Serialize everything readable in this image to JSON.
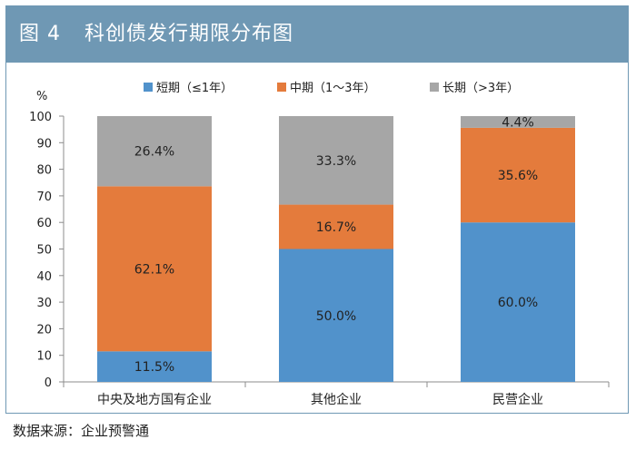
{
  "header": {
    "figure_no": "图 4",
    "title": "科创债发行期限分布图"
  },
  "source": "数据来源：企业预警通",
  "colors": {
    "short": "#5192cb",
    "mid": "#e47b3c",
    "long": "#a6a6a6",
    "header_bg": "#6f98b4"
  },
  "chart_data": {
    "type": "bar",
    "stacked": true,
    "title": "",
    "xlabel": "",
    "ylabel": "%",
    "ylim": [
      0,
      100
    ],
    "yticks": [
      "0",
      "10",
      "20",
      "30",
      "40",
      "50",
      "60",
      "70",
      "80",
      "90",
      "100"
    ],
    "grid": false,
    "legend_position": "top",
    "categories": [
      "中央及地方国有企业",
      "其他企业",
      "民营企业"
    ],
    "series": [
      {
        "name": "短期（≤1年）",
        "values": [
          11.5,
          50.0,
          60.0
        ],
        "labels": [
          "11.5%",
          "50.0%",
          "60.0%"
        ],
        "color": "#5192cb"
      },
      {
        "name": "中期（1～3年）",
        "values": [
          62.1,
          16.7,
          35.6
        ],
        "labels": [
          "62.1%",
          "16.7%",
          "35.6%"
        ],
        "color": "#e47b3c"
      },
      {
        "name": "长期（>3年）",
        "values": [
          26.4,
          33.3,
          4.4
        ],
        "labels": [
          "26.4%",
          "33.3%",
          "4.4%"
        ],
        "color": "#a6a6a6"
      }
    ]
  }
}
